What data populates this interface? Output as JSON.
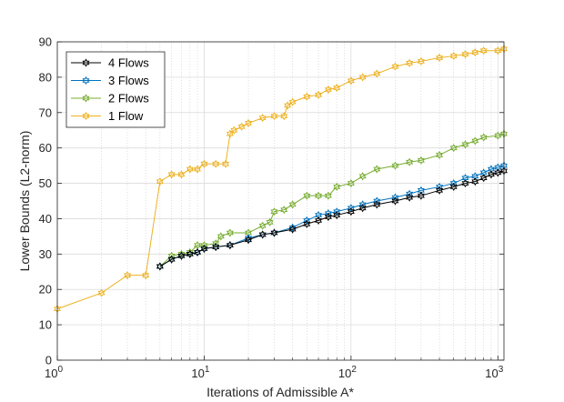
{
  "chart_data": {
    "type": "line",
    "title": "",
    "xlabel": "Iterations of Admissible A*",
    "ylabel": "Lower Bounds (L2-norm)",
    "xscale": "log",
    "xlim": [
      1,
      1100
    ],
    "ylim": [
      0,
      90
    ],
    "yticks": [
      "0",
      "10",
      "20",
      "30",
      "40",
      "50",
      "60",
      "70",
      "80",
      "90"
    ],
    "xticks": [
      {
        "base": "10",
        "exp": "0",
        "value": 1
      },
      {
        "base": "10",
        "exp": "1",
        "value": 10
      },
      {
        "base": "10",
        "exp": "2",
        "value": 100
      },
      {
        "base": "10",
        "exp": "3",
        "value": 1000
      }
    ],
    "grid": true,
    "minor_grid": true,
    "legend_position": "top-left",
    "series": [
      {
        "name": "4 Flows",
        "color": "#000000",
        "marker": "hexagram",
        "points": [
          [
            5,
            26.5
          ],
          [
            6,
            28.5
          ],
          [
            7,
            29.5
          ],
          [
            8,
            30
          ],
          [
            9,
            30.5
          ],
          [
            10,
            31.5
          ],
          [
            12,
            32
          ],
          [
            15,
            32.5
          ],
          [
            20,
            34
          ],
          [
            25,
            35.5
          ],
          [
            30,
            36
          ],
          [
            40,
            37
          ],
          [
            50,
            38.5
          ],
          [
            60,
            39.5
          ],
          [
            70,
            40.5
          ],
          [
            80,
            41
          ],
          [
            100,
            42
          ],
          [
            120,
            43
          ],
          [
            150,
            44
          ],
          [
            200,
            45
          ],
          [
            250,
            46
          ],
          [
            300,
            46.5
          ],
          [
            400,
            48
          ],
          [
            500,
            49
          ],
          [
            600,
            50
          ],
          [
            700,
            50.5
          ],
          [
            800,
            51.5
          ],
          [
            900,
            52.5
          ],
          [
            1000,
            53
          ],
          [
            1100,
            53.5
          ]
        ]
      },
      {
        "name": "3 Flows",
        "color": "#0072BD",
        "marker": "hexagram",
        "points": [
          [
            5,
            26.5
          ],
          [
            6,
            28.5
          ],
          [
            7,
            29.5
          ],
          [
            8,
            30
          ],
          [
            9,
            30.5
          ],
          [
            10,
            31.5
          ],
          [
            12,
            32
          ],
          [
            15,
            32.5
          ],
          [
            20,
            34.5
          ],
          [
            25,
            35.5
          ],
          [
            30,
            36
          ],
          [
            40,
            37.5
          ],
          [
            50,
            39.5
          ],
          [
            60,
            41
          ],
          [
            70,
            41.5
          ],
          [
            80,
            42
          ],
          [
            100,
            43
          ],
          [
            120,
            44
          ],
          [
            150,
            45
          ],
          [
            200,
            46
          ],
          [
            250,
            47
          ],
          [
            300,
            48
          ],
          [
            400,
            49
          ],
          [
            500,
            50
          ],
          [
            600,
            51.5
          ],
          [
            700,
            52
          ],
          [
            800,
            53
          ],
          [
            900,
            54
          ],
          [
            1000,
            54.5
          ],
          [
            1100,
            55
          ]
        ]
      },
      {
        "name": "2 Flows",
        "color": "#77AC30",
        "marker": "hexagram",
        "points": [
          [
            5,
            26.5
          ],
          [
            6,
            29.5
          ],
          [
            7,
            30
          ],
          [
            8,
            30.5
          ],
          [
            9,
            32.5
          ],
          [
            10,
            32.5
          ],
          [
            12,
            33
          ],
          [
            13,
            35
          ],
          [
            15,
            36
          ],
          [
            20,
            36
          ],
          [
            25,
            38
          ],
          [
            28,
            39
          ],
          [
            30,
            42
          ],
          [
            35,
            42.5
          ],
          [
            40,
            44
          ],
          [
            50,
            46.5
          ],
          [
            60,
            46.5
          ],
          [
            70,
            46.5
          ],
          [
            80,
            49
          ],
          [
            100,
            50
          ],
          [
            120,
            52
          ],
          [
            150,
            54
          ],
          [
            200,
            55
          ],
          [
            250,
            56
          ],
          [
            300,
            56.5
          ],
          [
            400,
            58
          ],
          [
            500,
            60
          ],
          [
            600,
            61
          ],
          [
            700,
            62
          ],
          [
            800,
            63
          ],
          [
            1000,
            63.5
          ],
          [
            1100,
            64
          ]
        ]
      },
      {
        "name": "1 Flow",
        "color": "#EDB120",
        "marker": "hexagram",
        "points": [
          [
            1,
            14.5
          ],
          [
            2,
            19
          ],
          [
            3,
            24
          ],
          [
            4,
            24
          ],
          [
            5,
            50.5
          ],
          [
            6,
            52.5
          ],
          [
            7,
            52.5
          ],
          [
            8,
            54
          ],
          [
            9,
            54
          ],
          [
            10,
            55.5
          ],
          [
            12,
            55.5
          ],
          [
            14,
            55.5
          ],
          [
            15,
            64
          ],
          [
            16,
            65
          ],
          [
            18,
            66
          ],
          [
            20,
            67
          ],
          [
            25,
            68.5
          ],
          [
            30,
            69
          ],
          [
            35,
            69
          ],
          [
            37,
            72
          ],
          [
            40,
            73
          ],
          [
            50,
            74.5
          ],
          [
            60,
            75
          ],
          [
            70,
            76.5
          ],
          [
            80,
            77
          ],
          [
            100,
            79
          ],
          [
            120,
            80
          ],
          [
            150,
            81
          ],
          [
            200,
            83
          ],
          [
            250,
            84
          ],
          [
            300,
            84.5
          ],
          [
            400,
            85.5
          ],
          [
            500,
            86
          ],
          [
            600,
            86.5
          ],
          [
            700,
            87
          ],
          [
            800,
            87.5
          ],
          [
            1000,
            87.5
          ],
          [
            1100,
            88
          ]
        ]
      }
    ]
  }
}
